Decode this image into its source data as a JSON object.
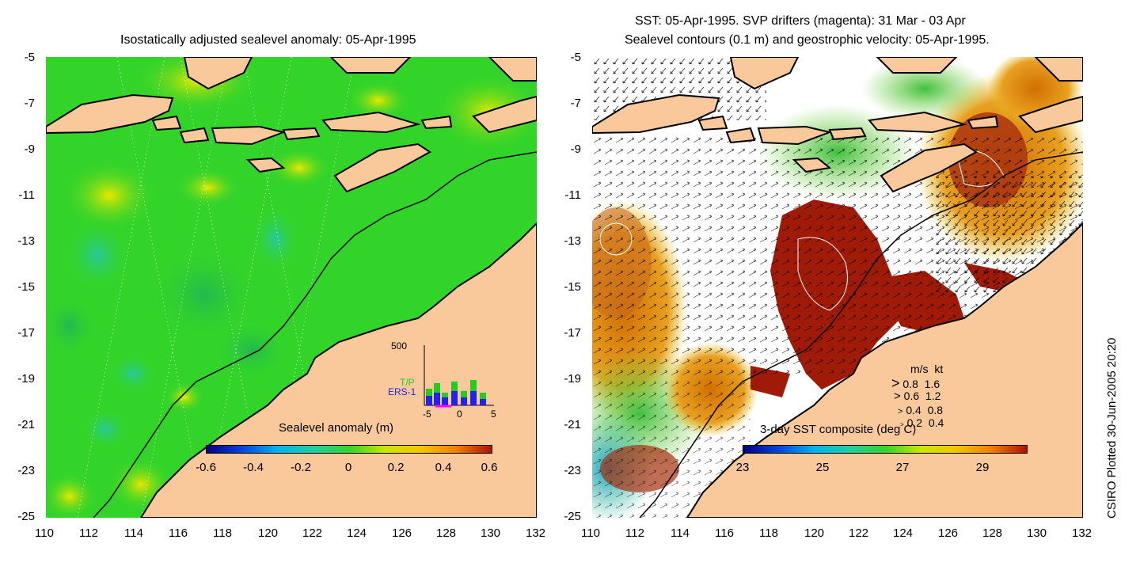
{
  "left_panel": {
    "title": "Isostatically adjusted sealevel anomaly: 05-Apr-1995",
    "colorbar_label": "Sealevel anomaly (m)",
    "colorbar_ticks": [
      "-0.6",
      "-0.4",
      "-0.2",
      "0",
      "0.2",
      "0.4",
      "0.6"
    ],
    "histogram": {
      "ymax_label": "500",
      "series": [
        "T/P",
        "ERS-1"
      ],
      "series_colors": [
        "#22cc22",
        "#2222ee"
      ],
      "x_ticks": [
        "-5",
        "0",
        "5"
      ]
    }
  },
  "right_panel": {
    "title_line1": "SST: 05-Apr-1995. SVP drifters (magenta): 31 Mar - 03 Apr",
    "title_line2": "Sealevel contours (0.1 m) and geostrophic velocity: 05-Apr-1995.",
    "colorbar_label": "3-day SST composite (deg C)",
    "colorbar_ticks": [
      "23",
      "25",
      "27",
      "29"
    ],
    "velocity_legend": {
      "header": [
        "m/s",
        "kt"
      ],
      "rows": [
        [
          "0.8",
          "1.6"
        ],
        [
          "0.6",
          "1.2"
        ],
        [
          "0.4",
          "0.8"
        ],
        [
          "0.2",
          "0.4"
        ]
      ]
    }
  },
  "axes": {
    "y_ticks": [
      "-5",
      "-7",
      "-9",
      "-11",
      "-13",
      "-15",
      "-17",
      "-19",
      "-21",
      "-23",
      "-25"
    ],
    "x_ticks": [
      "110",
      "112",
      "114",
      "116",
      "118",
      "120",
      "122",
      "124",
      "126",
      "128",
      "130",
      "132"
    ],
    "lat_range": [
      -25,
      -5
    ],
    "lon_range": [
      110,
      132
    ]
  },
  "credit": "CSIRO Plotted 30-Jun-2005 20:20",
  "colors": {
    "land": "#f9c89b",
    "ocean_green": "#33d42a",
    "coast": "#000000"
  }
}
